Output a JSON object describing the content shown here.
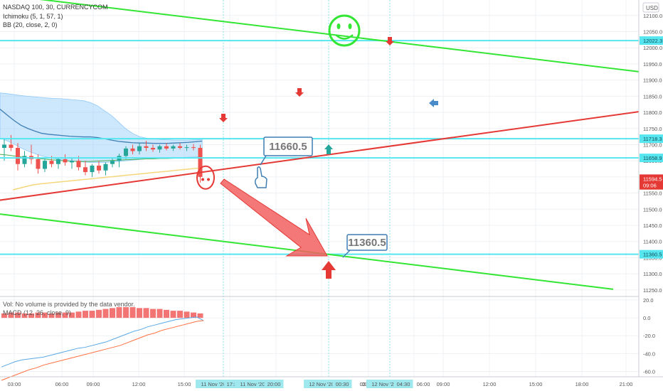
{
  "chart_data": {
    "type": "candlestick",
    "title": "NASDAQ 100, 30, CURRENCYCOM",
    "indicators": [
      "Ichimoku (5, 1, 57, 1)",
      "BB (20, close, 2, 0)"
    ],
    "currency": "USD",
    "price_axis": {
      "ticks": [
        12100,
        12050,
        12000,
        11950,
        11900,
        11850,
        11800,
        11750,
        11700,
        11650,
        11600,
        11550,
        11500,
        11450,
        11400,
        11350,
        11300,
        11250
      ],
      "range": [
        11232,
        12148
      ],
      "labels": [
        "12100.0",
        "12050.0",
        "12000.0",
        "11950.0",
        "11900.0",
        "11850.0",
        "11800.0",
        "11750.0",
        "11700.0",
        "11650.0",
        "11600.0",
        "11550.0",
        "11500.0",
        "11450.0",
        "11400.0",
        "11350.0",
        "11300.0",
        "11250.0"
      ]
    },
    "price_tags": [
      {
        "label": "12022.3",
        "value": 12022.3,
        "color": "#55e6f0"
      },
      {
        "label": "11718.3",
        "value": 11718.3,
        "color": "#55e6f0"
      },
      {
        "label": "11658.9",
        "value": 11658.9,
        "color": "#55e6f0"
      },
      {
        "label": "11594.5",
        "value": 11594.5,
        "color": "#e53935"
      },
      {
        "label": "09:06",
        "value": 11574,
        "color": "#e53935"
      },
      {
        "label": "11360.5",
        "value": 11360.5,
        "color": "#55e6f0"
      }
    ],
    "horizontal_levels": [
      12022.3,
      11718.3,
      11658.9,
      11360.5
    ],
    "annotations": [
      {
        "text": "11660.5",
        "value": 11660.5
      },
      {
        "text": "11360.5",
        "value": 11360.5
      }
    ],
    "time_axis": {
      "ticks": [
        "03:00",
        "06:00",
        "09:00",
        "12:00",
        "15:00",
        "11 Nov '20",
        "17:30",
        "11 Nov '20",
        "20:00",
        "03:00",
        "12 Nov '20",
        "00:30",
        "03:00",
        "12 Nov '20",
        "04:30",
        "06:00",
        "09:00",
        "12:00",
        "15:00",
        "18:00",
        "21:00"
      ]
    },
    "candles_ohlc": [
      [
        11690,
        11720,
        11650,
        11700
      ],
      [
        11700,
        11730,
        11680,
        11690
      ],
      [
        11690,
        11705,
        11620,
        11640
      ],
      [
        11640,
        11680,
        11630,
        11665
      ],
      [
        11665,
        11700,
        11640,
        11655
      ],
      [
        11655,
        11670,
        11610,
        11625
      ],
      [
        11625,
        11660,
        11615,
        11650
      ],
      [
        11650,
        11665,
        11630,
        11640
      ],
      [
        11640,
        11660,
        11625,
        11655
      ],
      [
        11655,
        11670,
        11635,
        11645
      ],
      [
        11645,
        11660,
        11625,
        11650
      ],
      [
        11650,
        11665,
        11620,
        11630
      ],
      [
        11630,
        11650,
        11605,
        11615
      ],
      [
        11615,
        11640,
        11600,
        11635
      ],
      [
        11635,
        11650,
        11610,
        11620
      ],
      [
        11620,
        11645,
        11605,
        11640
      ],
      [
        11640,
        11660,
        11630,
        11650
      ],
      [
        11650,
        11672,
        11630,
        11665
      ],
      [
        11665,
        11695,
        11655,
        11688
      ],
      [
        11688,
        11700,
        11670,
        11680
      ],
      [
        11680,
        11705,
        11670,
        11695
      ],
      [
        11695,
        11712,
        11680,
        11690
      ],
      [
        11690,
        11700,
        11678,
        11685
      ],
      [
        11685,
        11700,
        11675,
        11695
      ],
      [
        11695,
        11705,
        11682,
        11688
      ],
      [
        11688,
        11700,
        11680,
        11695
      ],
      [
        11695,
        11705,
        11685,
        11690
      ],
      [
        11690,
        11700,
        11680,
        11692
      ],
      [
        11692,
        11702,
        11682,
        11690
      ],
      [
        11690,
        11700,
        11582,
        11600
      ]
    ],
    "sub_panel": {
      "text": "Vol: No volume is provided by the data vendor.",
      "indicator": "MACD (12, 26, close, 9)",
      "ticks": [
        20.0,
        0.0,
        -20.0,
        -40.0,
        -60.0
      ],
      "tick_labels": [
        "20.0",
        "0.0",
        "-20.0",
        "-40.0",
        "-60.0"
      ],
      "range": [
        -66,
        24
      ],
      "histogram": [
        5,
        6,
        6,
        5,
        5,
        6,
        6,
        5,
        6,
        6,
        6,
        7,
        8,
        8,
        9,
        10,
        11,
        12,
        12,
        12,
        11,
        11,
        10,
        10,
        9,
        8,
        8,
        7,
        6,
        5
      ],
      "macd_line": [
        -55,
        -52,
        -49,
        -47,
        -46,
        -45,
        -44,
        -42,
        -40,
        -38,
        -36,
        -34,
        -33,
        -31,
        -29,
        -27,
        -24,
        -21,
        -18,
        -15,
        -13,
        -10,
        -8,
        -6,
        -4,
        -2,
        -1,
        0,
        1,
        -3
      ],
      "signal_line": [
        -70,
        -67,
        -64,
        -61,
        -58,
        -56,
        -53,
        -51,
        -49,
        -47,
        -45,
        -43,
        -41,
        -39,
        -37,
        -35,
        -33,
        -31,
        -28,
        -25,
        -22,
        -19,
        -17,
        -14,
        -12,
        -10,
        -8,
        -6,
        -4,
        -3
      ]
    }
  }
}
